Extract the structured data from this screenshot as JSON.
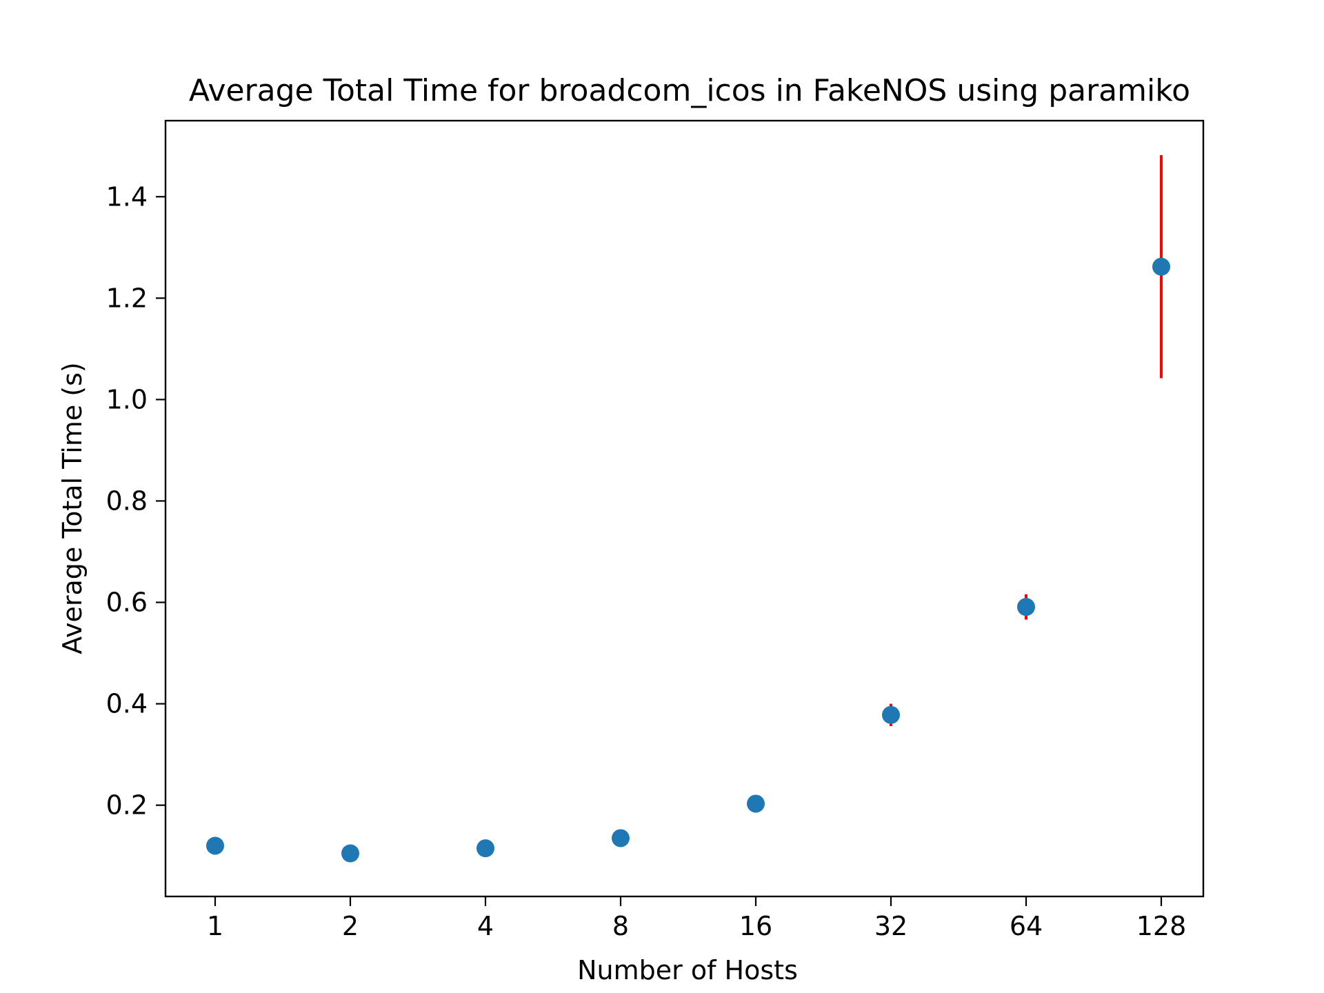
{
  "chart_data": {
    "type": "scatter",
    "title": "Average Total Time for broadcom_icos in FakeNOS using paramiko",
    "xlabel": "Number of Hosts",
    "ylabel": "Average Total Time (s)",
    "x_scale": "log2",
    "x_ticks": [
      "1",
      "2",
      "4",
      "8",
      "16",
      "32",
      "64",
      "128"
    ],
    "y_ticks": [
      "0.2",
      "0.4",
      "0.6",
      "0.8",
      "1.0",
      "1.2",
      "1.4"
    ],
    "ylim": [
      0.02,
      1.55
    ],
    "grid": false,
    "series": [
      {
        "marker_color": "#1f77b4",
        "error_bar_color": "#ff0000",
        "points": [
          {
            "x": 1,
            "y": 0.12,
            "err": 0.0
          },
          {
            "x": 2,
            "y": 0.105,
            "err": 0.0
          },
          {
            "x": 4,
            "y": 0.115,
            "err": 0.0
          },
          {
            "x": 8,
            "y": 0.135,
            "err": 0.0
          },
          {
            "x": 16,
            "y": 0.203,
            "err": 0.0
          },
          {
            "x": 32,
            "y": 0.378,
            "err": 0.022
          },
          {
            "x": 64,
            "y": 0.591,
            "err": 0.025
          },
          {
            "x": 128,
            "y": 1.262,
            "err": 0.22
          }
        ]
      }
    ]
  }
}
